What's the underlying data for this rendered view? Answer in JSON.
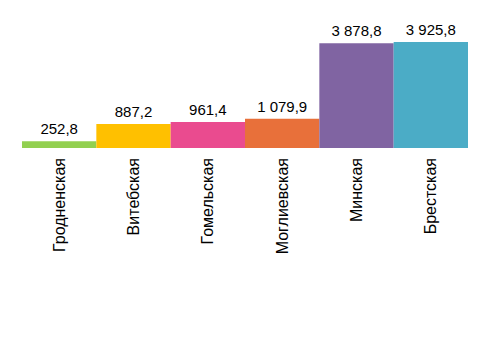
{
  "chart_data": {
    "type": "bar",
    "categories": [
      "Гродненская",
      "Витебская",
      "Гомельская",
      "Моглиевская",
      "Минская",
      "Брестская"
    ],
    "values": [
      252.8,
      887.2,
      961.4,
      1079.9,
      3878.8,
      3925.8
    ],
    "value_labels": [
      "252,8",
      "887,2",
      "961,4",
      "1 079,9",
      "3 878,8",
      "3 925,8"
    ],
    "colors": [
      "#92d050",
      "#ffc000",
      "#ea4b8f",
      "#e8703a",
      "#8064a2",
      "#4bacc6"
    ],
    "data_labels": true,
    "tick_labels": "x",
    "grid": false
  }
}
